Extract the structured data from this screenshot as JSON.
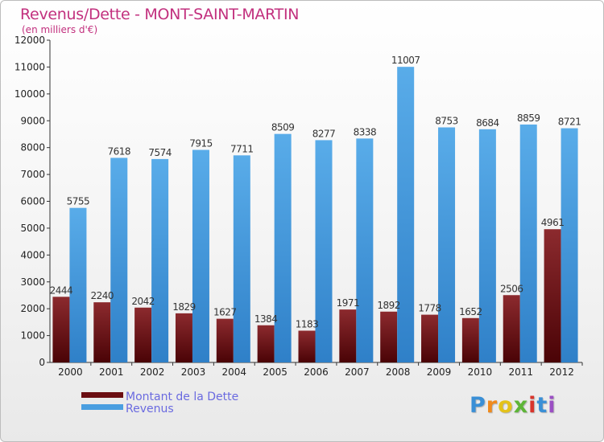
{
  "title": "Revenus/Dette - MONT-SAINT-MARTIN",
  "subtitle": "(en milliers d'€)",
  "logo_text": "Proxiti",
  "colors": {
    "dette": "#7a1318",
    "revenus": "#4a9ee0",
    "title": "#c2307e",
    "legend_text": "#6a6ae0"
  },
  "chart_data": {
    "type": "bar",
    "title": "Revenus/Dette - MONT-SAINT-MARTIN",
    "ylabel": "(en milliers d'€)",
    "xlabel": "",
    "categories": [
      "2000",
      "2001",
      "2002",
      "2003",
      "2004",
      "2005",
      "2006",
      "2007",
      "2008",
      "2009",
      "2010",
      "2011",
      "2012"
    ],
    "series": [
      {
        "name": "Montant de la Dette",
        "values": [
          2444,
          2240,
          2042,
          1829,
          1627,
          1384,
          1183,
          1971,
          1892,
          1778,
          1652,
          2506,
          4961
        ],
        "labels": [
          "2444",
          "2240",
          "2042",
          "1829",
          "1627",
          "1384",
          "1183",
          "1971",
          "1892",
          "1778",
          "1652",
          "2506",
          "4961"
        ]
      },
      {
        "name": "Revenus",
        "values": [
          5755,
          7618,
          7574,
          7915,
          7711,
          8509,
          8277,
          8338,
          11007,
          8753,
          8684,
          8859,
          8721
        ],
        "labels": [
          "5755",
          "7618",
          "7574",
          "7915",
          "7711",
          "8509",
          "8277",
          "8338",
          "11007",
          "8753",
          "8684",
          "8859",
          "8721"
        ]
      }
    ],
    "ylim": [
      0,
      12000
    ],
    "yticks": [
      0,
      1000,
      2000,
      3000,
      4000,
      5000,
      6000,
      7000,
      8000,
      9000,
      10000,
      11000,
      12000
    ],
    "ytick_labels": [
      "0",
      "1000",
      "2000",
      "3000",
      "4000",
      "5000",
      "6000",
      "7000",
      "8000",
      "9000",
      "10000",
      "11000",
      "12000"
    ],
    "grid": false,
    "legend_position": "bottom-left"
  }
}
